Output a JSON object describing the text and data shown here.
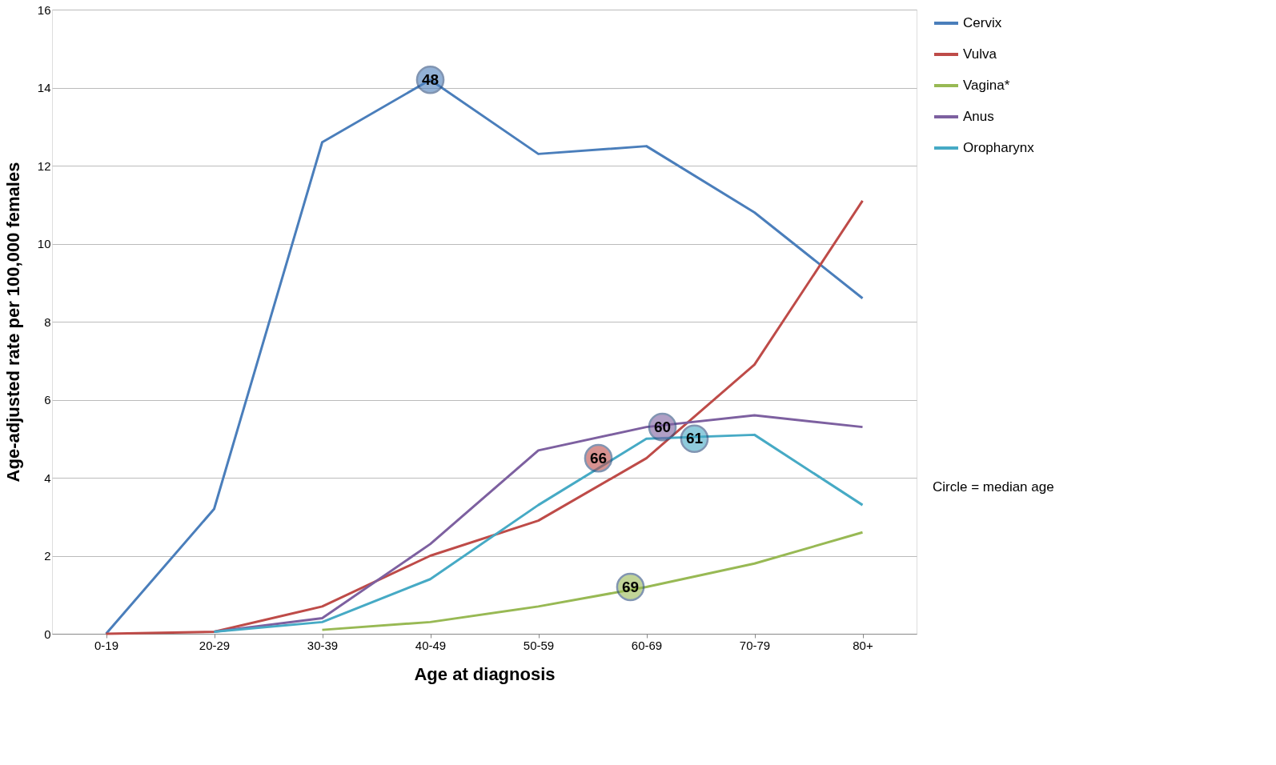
{
  "chart_data": {
    "type": "line",
    "xlabel": "Age at diagnosis",
    "ylabel": "Age-adjusted rate per 100,000 females",
    "categories": [
      "0-19",
      "20-29",
      "30-39",
      "40-49",
      "50-59",
      "60-69",
      "70-79",
      "80+"
    ],
    "series": [
      {
        "name": "Cervix",
        "color": "#4a7ebb",
        "values": [
          0,
          3.2,
          12.6,
          14.2,
          12.3,
          12.5,
          10.8,
          8.6
        ]
      },
      {
        "name": "Vulva",
        "color": "#be4b48",
        "values": [
          0,
          0.05,
          0.7,
          2.0,
          2.9,
          4.5,
          6.9,
          11.1
        ]
      },
      {
        "name": "Vagina*",
        "color": "#98b954",
        "values": [
          null,
          null,
          0.1,
          0.3,
          0.7,
          1.2,
          1.8,
          2.6
        ]
      },
      {
        "name": "Anus",
        "color": "#7d60a0",
        "values": [
          null,
          0.05,
          0.4,
          2.3,
          4.7,
          5.3,
          5.6,
          5.3
        ]
      },
      {
        "name": "Oropharynx",
        "color": "#46aac5",
        "values": [
          null,
          0.05,
          0.3,
          1.4,
          3.3,
          5.0,
          5.1,
          3.3
        ]
      }
    ],
    "annotations": [
      {
        "text": "48",
        "x": "40-49",
        "y": 14.2
      },
      {
        "text": "66",
        "x": "60-69",
        "y": 4.5
      },
      {
        "text": "69",
        "x": "60-69",
        "y": 1.2
      },
      {
        "text": "60",
        "x": "60-69",
        "y": 5.3
      },
      {
        "text": "61",
        "x": "60-69",
        "y": 5.0
      },
      "Circle = median age"
    ],
    "ylim": [
      0,
      16
    ],
    "yticks": [
      0,
      2,
      4,
      6,
      8,
      10,
      12,
      14,
      16
    ],
    "grid": "y",
    "legend": "right",
    "marker": "none",
    "line_style": "solid"
  }
}
